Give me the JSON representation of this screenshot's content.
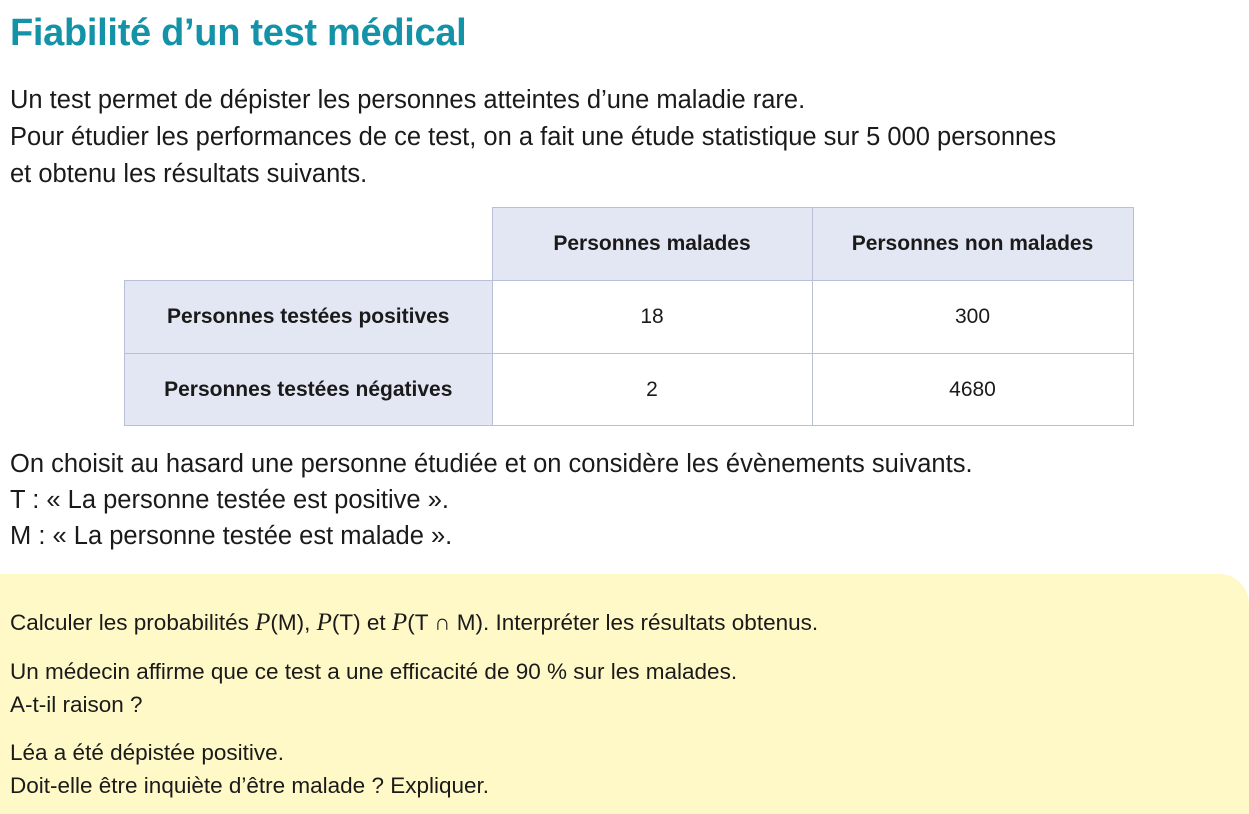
{
  "title": "Fiabilité d’un test médical",
  "intro": {
    "line1": "Un test permet de dépister les personnes atteintes d’une maladie rare.",
    "line2": "Pour étudier les performances de ce test, on a fait une étude statistique sur 5 000 personnes",
    "line3": "et obtenu les résultats suivants."
  },
  "table": {
    "headers": [
      "Personnes malades",
      "Personnes non malades"
    ],
    "rows": [
      {
        "label": "Personnes testées positives",
        "values": [
          "18",
          "300"
        ]
      },
      {
        "label": "Personnes testées négatives",
        "values": [
          "2",
          "4680"
        ]
      }
    ]
  },
  "events": {
    "line1": "On choisit au hasard une personne étudiée et on considère les évènements suivants.",
    "line2": "T : « La personne testée est positive ».",
    "line3": "M : « La personne testée est malade »."
  },
  "questions": {
    "q1": {
      "p1": "P",
      "t1": "(M), ",
      "p2": "P",
      "t2": "(T) et ",
      "p3": "P",
      "t3": "(T ∩ M). Interpréter les résultats obtenus.",
      "lead": "Calculer les probabilités "
    },
    "q2": {
      "line1": "Un médecin affirme que ce test a une efficacité de 90 % sur les malades.",
      "line2": "A-t-il raison ?"
    },
    "q3": {
      "line1": "Léa a été dépistée positive.",
      "line2": "Doit-elle être inquiète d’être malade ? Expliquer."
    }
  }
}
